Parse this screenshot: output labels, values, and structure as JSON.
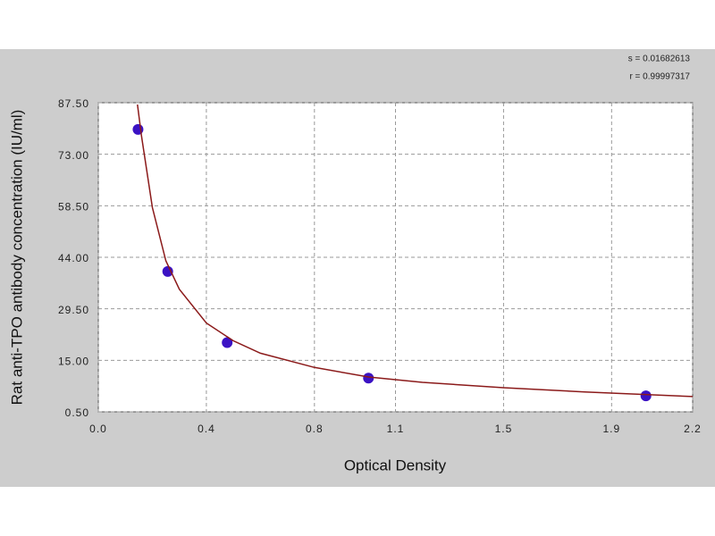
{
  "chart_data": {
    "type": "scatter",
    "x_label": "Optical Density",
    "y_label": "Rat anti-TPO antibody concentration (IU/ml)",
    "annotations": [
      "s = 0.01682613",
      "r = 0.99997317"
    ],
    "xlim": [
      0,
      2.2
    ],
    "xticks": [
      {
        "value": 0,
        "label": "0.0"
      },
      0.4,
      0.8,
      1.1,
      1.5,
      1.9,
      2.2
    ],
    "ylim": [
      0.5,
      87.5
    ],
    "yticks": [
      {
        "value": 0.5,
        "label": "0.50"
      },
      {
        "value": 15,
        "label": "15.00"
      },
      {
        "value": 29.5,
        "label": "29.50"
      },
      {
        "value": 44,
        "label": "44.00"
      },
      {
        "value": 58.5,
        "label": "58.50"
      },
      {
        "value": 73,
        "label": "73.00"
      },
      {
        "value": 87.5,
        "label": "87.50"
      }
    ],
    "grid": true,
    "series": [
      {
        "style": "markers",
        "color": "#3b12c4",
        "x": [
          0.147,
          0.257,
          0.477,
          1.0,
          2.027
        ],
        "y": [
          80,
          40,
          20,
          10,
          5
        ]
      },
      {
        "style": "line",
        "color": "#8b1a1a",
        "x": [
          0.145,
          0.16,
          0.2,
          0.25,
          0.3,
          0.4,
          0.5,
          0.6,
          0.8,
          1.0,
          1.2,
          1.5,
          1.8,
          2.2
        ],
        "y": [
          87,
          78,
          58,
          43,
          35,
          25.5,
          20.5,
          17,
          13,
          10.3,
          8.8,
          7.3,
          6.1,
          4.8
        ]
      }
    ]
  }
}
